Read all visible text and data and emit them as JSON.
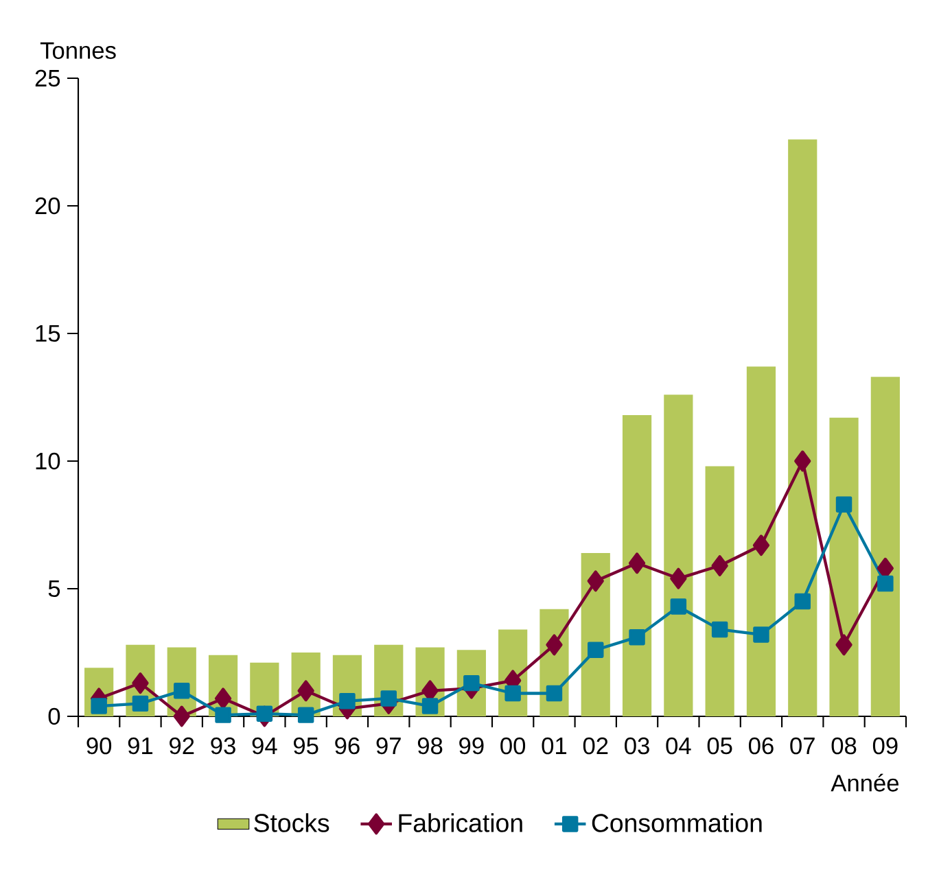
{
  "chart_data": {
    "type": "bar",
    "ylabel": "Tonnes",
    "xlabel": "Année",
    "categories": [
      "90",
      "91",
      "92",
      "93",
      "94",
      "95",
      "96",
      "97",
      "98",
      "99",
      "00",
      "01",
      "02",
      "03",
      "04",
      "05",
      "06",
      "07",
      "08",
      "09"
    ],
    "series": [
      {
        "name": "Stocks",
        "color": "#b5c85a",
        "values": [
          1.9,
          2.8,
          2.7,
          2.4,
          2.1,
          2.5,
          2.4,
          2.8,
          2.7,
          2.6,
          3.4,
          4.2,
          6.4,
          11.8,
          12.6,
          9.8,
          13.7,
          22.6,
          11.7,
          13.3
        ]
      },
      {
        "name": "Fabrication",
        "type": "line",
        "marker": "diamond",
        "color": "#7a0033",
        "values": [
          0.7,
          1.3,
          0,
          0.7,
          0,
          1.0,
          0.3,
          0.5,
          1.0,
          1.1,
          1.4,
          2.8,
          5.3,
          6.0,
          5.4,
          5.9,
          6.7,
          10.0,
          2.8,
          5.8
        ]
      },
      {
        "name": "Consommation",
        "type": "line",
        "marker": "square",
        "color": "#0078a0",
        "values": [
          0.4,
          0.5,
          1.0,
          0.05,
          0.1,
          0.05,
          0.6,
          0.7,
          0.4,
          1.3,
          0.9,
          0.9,
          2.6,
          3.1,
          4.3,
          3.4,
          3.2,
          4.5,
          8.3,
          5.2
        ]
      }
    ],
    "ylim": [
      0,
      25
    ],
    "yticks": [
      0,
      5,
      10,
      15,
      20,
      25
    ],
    "grid": false,
    "legend": "bottom"
  }
}
